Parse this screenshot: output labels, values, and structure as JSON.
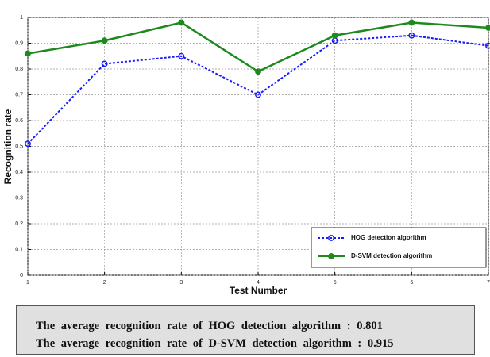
{
  "chart_data": {
    "type": "line",
    "xlabel": "Test Number",
    "ylabel": "Recognition rate",
    "x": [
      1,
      2,
      3,
      4,
      5,
      6,
      7
    ],
    "series": [
      {
        "name": "HOG detection algorithm",
        "color": "#1a1aff",
        "dash": true,
        "values": [
          0.51,
          0.82,
          0.85,
          0.7,
          0.91,
          0.93,
          0.89
        ]
      },
      {
        "name": "D-SVM detection algorithm",
        "color": "#1e8a1e",
        "dash": false,
        "values": [
          0.86,
          0.91,
          0.98,
          0.79,
          0.93,
          0.98,
          0.96
        ]
      }
    ],
    "xlim": [
      1,
      7
    ],
    "xticks": [
      1,
      2,
      3,
      4,
      5,
      6,
      7
    ],
    "ylim": [
      0,
      1
    ],
    "yticks": [
      0,
      0.1,
      0.2,
      0.3,
      0.4,
      0.5,
      0.6,
      0.7,
      0.8,
      0.9,
      1
    ],
    "grid": true,
    "legend": "lower right"
  },
  "caption": {
    "lines": [
      "The average recognition rate of HOG detection algorithm : 0.801",
      "The average recognition rate of D-SVM detection algorithm : 0.915"
    ]
  }
}
